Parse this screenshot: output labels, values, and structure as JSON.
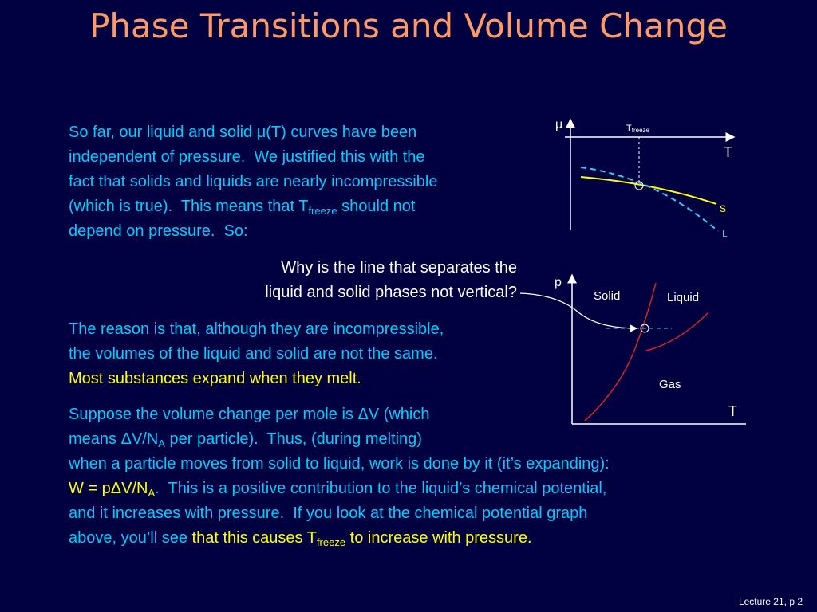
{
  "title": "Phase Transitions and Volume Change",
  "paragraphs": [
    {
      "lines": [
        [
          "So far, our liquid and solid μ(T) curves have been"
        ],
        [
          "independent of pressure.  We justified this with the"
        ],
        [
          "fact that solids and liquids are nearly incompressible"
        ],
        [
          "(which is true).  This means that T",
          "freeze",
          " should not"
        ],
        [
          "depend on pressure.  So:"
        ]
      ]
    },
    {
      "lines": [
        [
          "Why is the line that separates the"
        ],
        [
          "liquid and solid phases not vertical?"
        ]
      ]
    },
    {
      "lines": [
        [
          "The reason is that, although they are incompressible,"
        ],
        [
          "the volumes of the liquid and solid are not the same."
        ],
        [
          "Most substances expand when they melt."
        ]
      ]
    },
    {
      "lines": [
        [
          "Suppose the volume change per mole is ΔV (which"
        ],
        [
          "means ΔV/N",
          "A",
          " per particle).  Thus, (during melting)"
        ],
        [
          "when a particle moves from solid to liquid, work is done by it (it’s expanding):"
        ],
        [
          "W = pΔV/N",
          "A",
          ".  This is a positive contribution to the liquid’s chemical potential,"
        ],
        [
          "and it increases with pressure.  If you look at the chemical potential graph"
        ],
        [
          "above, you’ll see ",
          "that this causes T",
          "freeze",
          " to increase with pressure."
        ]
      ]
    }
  ],
  "graph1": {
    "y_label": "μ",
    "t_freeze": [
      "T",
      "freeze"
    ],
    "x_label": "T",
    "solid": "S",
    "liquid": "L"
  },
  "graph2": {
    "y_label": "p",
    "solid": "Solid",
    "liquid": "Liquid",
    "gas": "Gas",
    "x_label": "T"
  },
  "footer": "Lecture 21, p 2"
}
